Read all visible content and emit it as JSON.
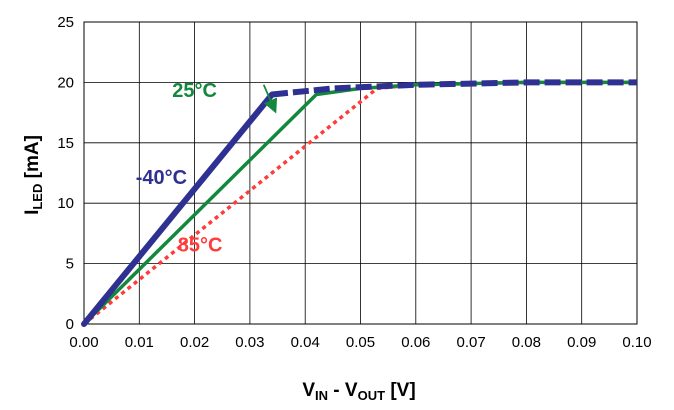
{
  "chart_data": {
    "type": "line",
    "title": "",
    "xlabel": {
      "main": "V",
      "sub1": "IN",
      "mid": " - V",
      "sub2": "OUT",
      "unit": " [V]"
    },
    "ylabel": {
      "main": "I",
      "sub": "LED",
      "unit": " [mA]"
    },
    "xlim": [
      0.0,
      0.1
    ],
    "ylim": [
      0,
      25
    ],
    "x_ticks": [
      "0.00",
      "0.01",
      "0.02",
      "0.03",
      "0.04",
      "0.05",
      "0.06",
      "0.07",
      "0.08",
      "0.09",
      "0.10"
    ],
    "y_ticks": [
      "0",
      "5",
      "10",
      "15",
      "20",
      "25"
    ],
    "grid": true,
    "series": [
      {
        "name": "-40°C",
        "color": "#2e3192",
        "style": "solid-dashed-tail",
        "points": [
          [
            0.0,
            0.0
          ],
          [
            0.034,
            19.0
          ],
          [
            0.045,
            19.5
          ],
          [
            0.06,
            19.8
          ],
          [
            0.08,
            20.0
          ],
          [
            0.1,
            20.0
          ]
        ],
        "label_anchor": [
          0.014,
          11.6
        ]
      },
      {
        "name": "25°C",
        "color": "#12883d",
        "style": "solid",
        "points": [
          [
            0.0,
            0.0
          ],
          [
            0.042,
            19.0
          ],
          [
            0.05,
            19.5
          ],
          [
            0.06,
            19.8
          ],
          [
            0.08,
            20.0
          ],
          [
            0.1,
            20.0
          ]
        ],
        "label_anchor": [
          0.02,
          18.8
        ],
        "arrow": [
          [
            0.0325,
            19.8
          ],
          [
            0.0345,
            17.7
          ]
        ]
      },
      {
        "name": "85°C",
        "color": "#ff3b3b",
        "style": "dotted",
        "points": [
          [
            0.0,
            0.0
          ],
          [
            0.053,
            19.5
          ],
          [
            0.06,
            19.8
          ],
          [
            0.08,
            20.0
          ],
          [
            0.1,
            20.0
          ]
        ],
        "label_anchor": [
          0.021,
          6.0
        ]
      }
    ]
  }
}
